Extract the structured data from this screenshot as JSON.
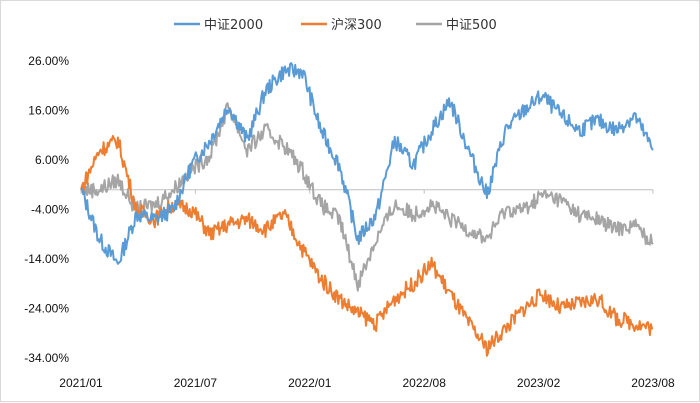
{
  "chart_data": {
    "type": "line",
    "title": "",
    "xlabel": "",
    "ylabel": "",
    "legend_position": "top",
    "grid": false,
    "x_ticks": [
      "2021/01",
      "2021/07",
      "2022/01",
      "2022/08",
      "2023/02",
      "2023/08"
    ],
    "y_ticks": [
      "26.00%",
      "16.00%",
      "6.00%",
      "-4.00%",
      "-14.00%",
      "-24.00%",
      "-34.00%"
    ],
    "ylim": [
      -34,
      26
    ],
    "x": [
      "2021/01",
      "2021/02",
      "2021/03",
      "2021/04",
      "2021/05",
      "2021/06",
      "2021/07",
      "2021/08",
      "2021/09",
      "2021/10",
      "2021/11",
      "2021/12",
      "2022/01",
      "2022/02",
      "2022/03",
      "2022/04",
      "2022/05",
      "2022/06",
      "2022/07",
      "2022/08",
      "2022/09",
      "2022/10",
      "2022/11",
      "2022/12",
      "2023/01",
      "2023/02",
      "2023/03",
      "2023/04",
      "2023/05",
      "2023/06",
      "2023/07",
      "2023/08"
    ],
    "series": [
      {
        "name": "中证2000",
        "color": "#5b9bd5",
        "values": [
          0,
          -10,
          -15,
          -5,
          -6,
          -4,
          5,
          10,
          17,
          10,
          20,
          24,
          24,
          12,
          5,
          -10,
          -5,
          10,
          5,
          12,
          18,
          8,
          -1,
          12,
          16,
          19,
          15,
          12,
          14,
          12,
          15,
          8
        ]
      },
      {
        "name": "沪深300",
        "color": "#ed7d31",
        "values": [
          0,
          8,
          10,
          -4,
          -6,
          -3,
          -4,
          -9,
          -7,
          -6,
          -8,
          -5,
          -12,
          -18,
          -22,
          -25,
          -27,
          -22,
          -19,
          -15,
          -21,
          -27,
          -32,
          -28,
          -24,
          -21,
          -24,
          -23,
          -22,
          -26,
          -27,
          -28
        ]
      },
      {
        "name": "中证500",
        "color": "#a5a5a5",
        "values": [
          0,
          0,
          2,
          -4,
          -3,
          0,
          4,
          7,
          17,
          8,
          12,
          9,
          4,
          -3,
          -6,
          -19,
          -10,
          -3,
          -5,
          -3,
          -6,
          -8,
          -10,
          -4,
          -4,
          -1,
          -2,
          -5,
          -6,
          -8,
          -7,
          -11
        ]
      }
    ]
  }
}
